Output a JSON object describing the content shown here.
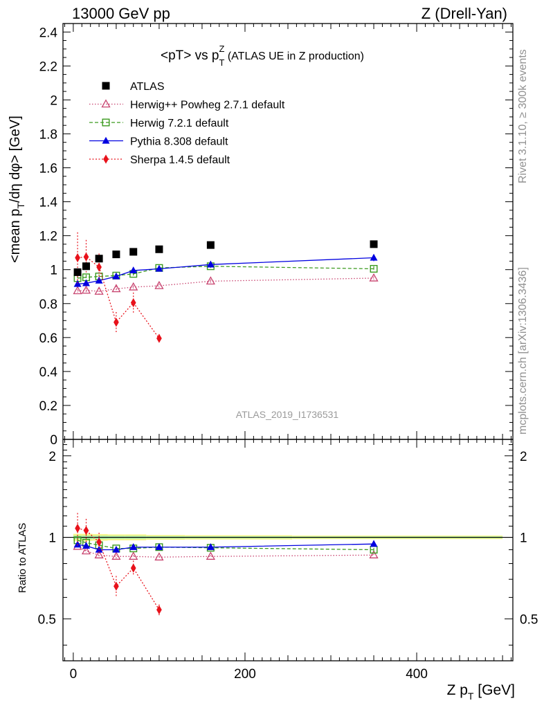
{
  "header": {
    "left": "13000 GeV pp",
    "right": "Z (Drell-Yan)"
  },
  "side_labels": {
    "rivet": "Rivet 3.1.10, ≥ 300k events",
    "mcplots": "mcplots.cern.ch [arXiv:1306.3436]"
  },
  "watermark": "ATLAS_2019_I1736531",
  "chart_data": {
    "type": "scatter",
    "title": {
      "main": "<pT> vs p",
      "sub": "T",
      "sup": "Z",
      "suffix": " (ATLAS UE in Z production)"
    },
    "xlabel": {
      "main": "Z p",
      "sub": "T",
      "suffix": " [GeV]"
    },
    "ylabel": {
      "a": "<mean p",
      "sub": "T",
      "b": "/dη dφ> [GeV]"
    },
    "ratio_ylabel": "Ratio to ATLAS",
    "xlim": [
      -12,
      512
    ],
    "ylim": [
      0,
      2.45
    ],
    "ratio_ylim": [
      0.35,
      2.3
    ],
    "x_ticks": [
      "0",
      "200",
      "400"
    ],
    "y_ticks": [
      "0",
      "0.2",
      "0.4",
      "0.6",
      "0.8",
      "1",
      "1.2",
      "1.4",
      "1.6",
      "1.8",
      "2",
      "2.2",
      "2.4"
    ],
    "ratio_y_ticks": [
      "0.5",
      "1",
      "2"
    ],
    "legend_position": "top-left",
    "x": [
      5,
      15,
      30,
      50,
      70,
      100,
      160,
      350
    ],
    "reference": {
      "name": "ATLAS",
      "color": "#000000",
      "values": [
        0.985,
        1.02,
        1.065,
        1.09,
        1.105,
        1.12,
        1.145,
        1.15
      ],
      "band_ratio_half_width": [
        0.03,
        0.03,
        0.028,
        0.025,
        0.025,
        0.02,
        0.018,
        0.015
      ]
    },
    "series": [
      {
        "name": "Herwig++ Powheg 2.7.1 default",
        "color": "#c8436f",
        "marker": "triangle-open",
        "dash": "1.5,2.5",
        "values": [
          0.875,
          0.878,
          0.872,
          0.887,
          0.897,
          0.905,
          0.932,
          0.95
        ],
        "errors": [
          0.01,
          0.012,
          0.02,
          0.015,
          0.01,
          0.01,
          0.01,
          0.01
        ],
        "ratio": [
          0.925,
          0.89,
          0.86,
          0.85,
          0.85,
          0.845,
          0.85,
          0.86
        ]
      },
      {
        "name": "Herwig 7.2.1 default",
        "color": "#3a9a1e",
        "marker": "square-open",
        "dash": "5,3",
        "values": [
          0.95,
          0.955,
          0.96,
          0.965,
          0.975,
          1.01,
          1.02,
          1.005
        ],
        "errors": [
          0.02,
          0.015,
          0.012,
          0.01,
          0.01,
          0.01,
          0.01,
          0.015
        ],
        "ratio": [
          0.975,
          0.955,
          0.935,
          0.91,
          0.91,
          0.92,
          0.915,
          0.9
        ]
      },
      {
        "name": "Pythia 8.308 default",
        "color": "#0000e0",
        "marker": "triangle",
        "dash": "",
        "values": [
          0.915,
          0.92,
          0.935,
          0.96,
          0.995,
          1.005,
          1.03,
          1.07
        ],
        "errors": [
          0.01,
          0.01,
          0.01,
          0.01,
          0.01,
          0.01,
          0.01,
          0.02
        ],
        "ratio": [
          0.94,
          0.93,
          0.9,
          0.9,
          0.92,
          0.92,
          0.92,
          0.945
        ]
      },
      {
        "name": "Sherpa 1.4.5 default",
        "color": "#e8121b",
        "marker": "diamond",
        "dash": "2,2.5",
        "xs": [
          5,
          15,
          30,
          50,
          70,
          100
        ],
        "values": [
          1.07,
          1.075,
          1.015,
          0.69,
          0.805,
          0.595
        ],
        "errors": [
          0.15,
          0.1,
          0.08,
          0.06,
          0.06,
          0.025
        ],
        "ratio": [
          1.08,
          1.06,
          0.96,
          0.66,
          0.77,
          0.54
        ],
        "ratio_errors": [
          0.15,
          0.11,
          0.08,
          0.06,
          0.05,
          0.025
        ]
      }
    ]
  }
}
